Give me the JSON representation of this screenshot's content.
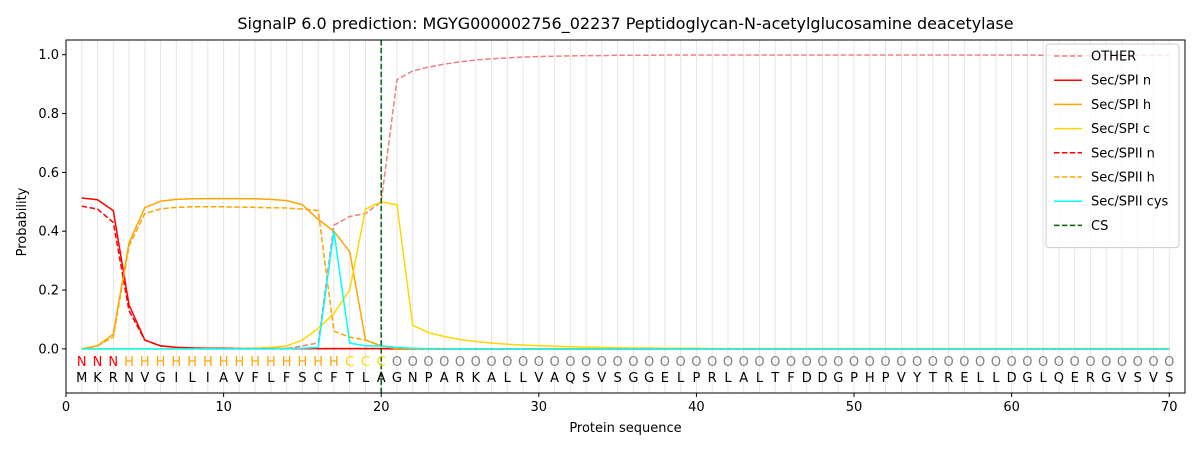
{
  "chart_data": {
    "type": "line",
    "title": "SignalP 6.0 prediction: MGYG000002756_02237 Peptidoglycan-N-acetylglucosamine deacetylase",
    "xlabel": "Protein sequence",
    "ylabel": "Probability",
    "xlim": [
      0,
      71
    ],
    "ylim": [
      -0.15,
      1.05
    ],
    "x_ticks": [
      0,
      10,
      20,
      30,
      40,
      50,
      60,
      70
    ],
    "y_ticks": [
      0.0,
      0.2,
      0.4,
      0.6,
      0.8,
      1.0
    ],
    "vertical_grid_at_each_position": true,
    "legend_position": "top-right",
    "sequence": [
      "M",
      "K",
      "R",
      "N",
      "V",
      "G",
      "I",
      "L",
      "I",
      "A",
      "V",
      "F",
      "L",
      "F",
      "S",
      "C",
      "F",
      "T",
      "L",
      "A",
      "G",
      "N",
      "P",
      "A",
      "R",
      "K",
      "A",
      "L",
      "L",
      "V",
      "A",
      "Q",
      "S",
      "V",
      "S",
      "G",
      "G",
      "E",
      "L",
      "P",
      "R",
      "L",
      "A",
      "L",
      "T",
      "F",
      "D",
      "D",
      "G",
      "P",
      "H",
      "P",
      "V",
      "Y",
      "T",
      "R",
      "E",
      "L",
      "L",
      "D",
      "G",
      "L",
      "Q",
      "E",
      "R",
      "G",
      "V",
      "S",
      "V",
      "S"
    ],
    "region_labels": [
      "N",
      "N",
      "N",
      "H",
      "H",
      "H",
      "H",
      "H",
      "H",
      "H",
      "H",
      "H",
      "H",
      "H",
      "H",
      "H",
      "H",
      "C",
      "C",
      "C",
      "O",
      "O",
      "O",
      "O",
      "O",
      "O",
      "O",
      "O",
      "O",
      "O",
      "O",
      "O",
      "O",
      "O",
      "O",
      "O",
      "O",
      "O",
      "O",
      "O",
      "O",
      "O",
      "O",
      "O",
      "O",
      "O",
      "O",
      "O",
      "O",
      "O",
      "O",
      "O",
      "O",
      "O",
      "O",
      "O",
      "O",
      "O",
      "O",
      "O",
      "O",
      "O",
      "O",
      "O",
      "O",
      "O",
      "O",
      "O",
      "O",
      "O"
    ],
    "region_colors": {
      "N": "#ff0000",
      "H": "#ffa500",
      "C": "#ffd700",
      "O": "#808080"
    },
    "cleavage_site": {
      "name": "CS",
      "x": 20,
      "color": "#006400"
    },
    "series": [
      {
        "name": "OTHER",
        "color": "#f08080",
        "dash": "dashed",
        "values": [
          0.0,
          0.0,
          0.0,
          0.0,
          0.0,
          0.0,
          0.0,
          0.0,
          0.0,
          0.0,
          0.0,
          0.0,
          0.0,
          0.0,
          0.01,
          0.02,
          0.42,
          0.45,
          0.46,
          0.5,
          0.915,
          0.945,
          0.958,
          0.968,
          0.976,
          0.982,
          0.986,
          0.989,
          0.992,
          0.994,
          0.995,
          0.996,
          0.997,
          0.997,
          0.998,
          0.998,
          0.998,
          0.999,
          0.999,
          0.999,
          0.999,
          0.999,
          0.999,
          0.999,
          0.999,
          0.999,
          0.999,
          0.999,
          0.999,
          0.999,
          0.999,
          0.999,
          0.999,
          0.999,
          0.999,
          0.999,
          0.999,
          0.999,
          0.999,
          0.999,
          0.999,
          0.998,
          0.998,
          0.998,
          0.998,
          0.998,
          0.998,
          0.998,
          0.998,
          0.998
        ]
      },
      {
        "name": "Sec/SPI n",
        "color": "#ff0000",
        "dash": "solid",
        "values": [
          0.513,
          0.507,
          0.47,
          0.15,
          0.03,
          0.01,
          0.005,
          0.003,
          0.002,
          0.002,
          0.001,
          0.001,
          0.001,
          0.001,
          0.001,
          0.001,
          0.001,
          0.001,
          0.001,
          0.001,
          0.0,
          0.0,
          0.0,
          0.0,
          0.0,
          0.0,
          0.0,
          0.0,
          0.0,
          0.0,
          0.0,
          0.0,
          0.0,
          0.0,
          0.0,
          0.0,
          0.0,
          0.0,
          0.0,
          0.0,
          0.0,
          0.0,
          0.0,
          0.0,
          0.0,
          0.0,
          0.0,
          0.0,
          0.0,
          0.0,
          0.0,
          0.0,
          0.0,
          0.0,
          0.0,
          0.0,
          0.0,
          0.0,
          0.0,
          0.0,
          0.0,
          0.0,
          0.0,
          0.0,
          0.0,
          0.0,
          0.0,
          0.0,
          0.0,
          0.0
        ]
      },
      {
        "name": "Sec/SPI h",
        "color": "#ffa500",
        "dash": "solid",
        "values": [
          0.0,
          0.01,
          0.05,
          0.36,
          0.48,
          0.502,
          0.508,
          0.51,
          0.511,
          0.511,
          0.511,
          0.51,
          0.508,
          0.504,
          0.49,
          0.44,
          0.4,
          0.33,
          0.03,
          0.01,
          0.0,
          0.0,
          0.0,
          0.0,
          0.0,
          0.0,
          0.0,
          0.0,
          0.0,
          0.0,
          0.0,
          0.0,
          0.0,
          0.0,
          0.0,
          0.0,
          0.0,
          0.0,
          0.0,
          0.0,
          0.0,
          0.0,
          0.0,
          0.0,
          0.0,
          0.0,
          0.0,
          0.0,
          0.0,
          0.0,
          0.0,
          0.0,
          0.0,
          0.0,
          0.0,
          0.0,
          0.0,
          0.0,
          0.0,
          0.0,
          0.0,
          0.0,
          0.0,
          0.0,
          0.0,
          0.0,
          0.0,
          0.0,
          0.0,
          0.0
        ]
      },
      {
        "name": "Sec/SPI c",
        "color": "#ffd700",
        "dash": "solid",
        "values": [
          0.0,
          0.0,
          0.0,
          0.0,
          0.0,
          0.0,
          0.0,
          0.0,
          0.0,
          0.0,
          0.001,
          0.002,
          0.005,
          0.01,
          0.03,
          0.07,
          0.12,
          0.2,
          0.475,
          0.5,
          0.49,
          0.08,
          0.055,
          0.042,
          0.032,
          0.025,
          0.02,
          0.016,
          0.013,
          0.011,
          0.009,
          0.007,
          0.006,
          0.005,
          0.004,
          0.003,
          0.003,
          0.002,
          0.002,
          0.002,
          0.001,
          0.001,
          0.001,
          0.001,
          0.001,
          0.001,
          0.001,
          0.001,
          0.001,
          0.001,
          0.001,
          0.001,
          0.001,
          0.001,
          0.001,
          0.001,
          0.001,
          0.001,
          0.001,
          0.001,
          0.001,
          0.001,
          0.001,
          0.001,
          0.001,
          0.001,
          0.001,
          0.001,
          0.001,
          0.001
        ]
      },
      {
        "name": "Sec/SPII n",
        "color": "#ff0000",
        "dash": "dashed",
        "values": [
          0.485,
          0.475,
          0.43,
          0.13,
          0.03,
          0.01,
          0.005,
          0.003,
          0.002,
          0.002,
          0.001,
          0.001,
          0.001,
          0.001,
          0.001,
          0.001,
          0.001,
          0.001,
          0.001,
          0.001,
          0.0,
          0.0,
          0.0,
          0.0,
          0.0,
          0.0,
          0.0,
          0.0,
          0.0,
          0.0,
          0.0,
          0.0,
          0.0,
          0.0,
          0.0,
          0.0,
          0.0,
          0.0,
          0.0,
          0.0,
          0.0,
          0.0,
          0.0,
          0.0,
          0.0,
          0.0,
          0.0,
          0.0,
          0.0,
          0.0,
          0.0,
          0.0,
          0.0,
          0.0,
          0.0,
          0.0,
          0.0,
          0.0,
          0.0,
          0.0,
          0.0,
          0.0,
          0.0,
          0.0,
          0.0,
          0.0,
          0.0,
          0.0,
          0.0,
          0.0
        ]
      },
      {
        "name": "Sec/SPII h",
        "color": "#ffa500",
        "dash": "dashed",
        "values": [
          0.0,
          0.01,
          0.04,
          0.35,
          0.46,
          0.476,
          0.481,
          0.483,
          0.483,
          0.483,
          0.482,
          0.481,
          0.48,
          0.479,
          0.475,
          0.47,
          0.06,
          0.04,
          0.03,
          0.01,
          0.0,
          0.0,
          0.0,
          0.0,
          0.0,
          0.0,
          0.0,
          0.0,
          0.0,
          0.0,
          0.0,
          0.0,
          0.0,
          0.0,
          0.0,
          0.0,
          0.0,
          0.0,
          0.0,
          0.0,
          0.0,
          0.0,
          0.0,
          0.0,
          0.0,
          0.0,
          0.0,
          0.0,
          0.0,
          0.0,
          0.0,
          0.0,
          0.0,
          0.0,
          0.0,
          0.0,
          0.0,
          0.0,
          0.0,
          0.0,
          0.0,
          0.0,
          0.0,
          0.0,
          0.0,
          0.0,
          0.0,
          0.0,
          0.0,
          0.0
        ]
      },
      {
        "name": "Sec/SPII cys",
        "color": "#00ffff",
        "dash": "solid",
        "values": [
          0.0,
          0.0,
          0.0,
          0.0,
          0.0,
          0.0,
          0.0,
          0.0,
          0.0,
          0.0,
          0.0,
          0.0,
          0.0,
          0.001,
          0.002,
          0.005,
          0.4,
          0.02,
          0.01,
          0.01,
          0.005,
          0.002,
          0.001,
          0.001,
          0.0,
          0.0,
          0.0,
          0.0,
          0.0,
          0.0,
          0.0,
          0.0,
          0.0,
          0.0,
          0.0,
          0.0,
          0.0,
          0.0,
          0.0,
          0.0,
          0.0,
          0.0,
          0.0,
          0.0,
          0.0,
          0.0,
          0.0,
          0.0,
          0.0,
          0.0,
          0.0,
          0.0,
          0.0,
          0.0,
          0.0,
          0.0,
          0.0,
          0.0,
          0.0,
          0.0,
          0.0,
          0.0,
          0.0,
          0.0,
          0.0,
          0.0,
          0.0,
          0.0,
          0.0,
          0.0
        ]
      }
    ],
    "legend_entries": [
      {
        "name": "OTHER",
        "color": "#f08080",
        "dash": "dashed"
      },
      {
        "name": "Sec/SPI n",
        "color": "#ff0000",
        "dash": "solid"
      },
      {
        "name": "Sec/SPI h",
        "color": "#ffa500",
        "dash": "solid"
      },
      {
        "name": "Sec/SPI c",
        "color": "#ffd700",
        "dash": "solid"
      },
      {
        "name": "Sec/SPII n",
        "color": "#ff0000",
        "dash": "dashed"
      },
      {
        "name": "Sec/SPII h",
        "color": "#ffa500",
        "dash": "dashed"
      },
      {
        "name": "Sec/SPII cys",
        "color": "#00ffff",
        "dash": "solid"
      },
      {
        "name": "CS",
        "color": "#006400",
        "dash": "dashed"
      }
    ]
  }
}
